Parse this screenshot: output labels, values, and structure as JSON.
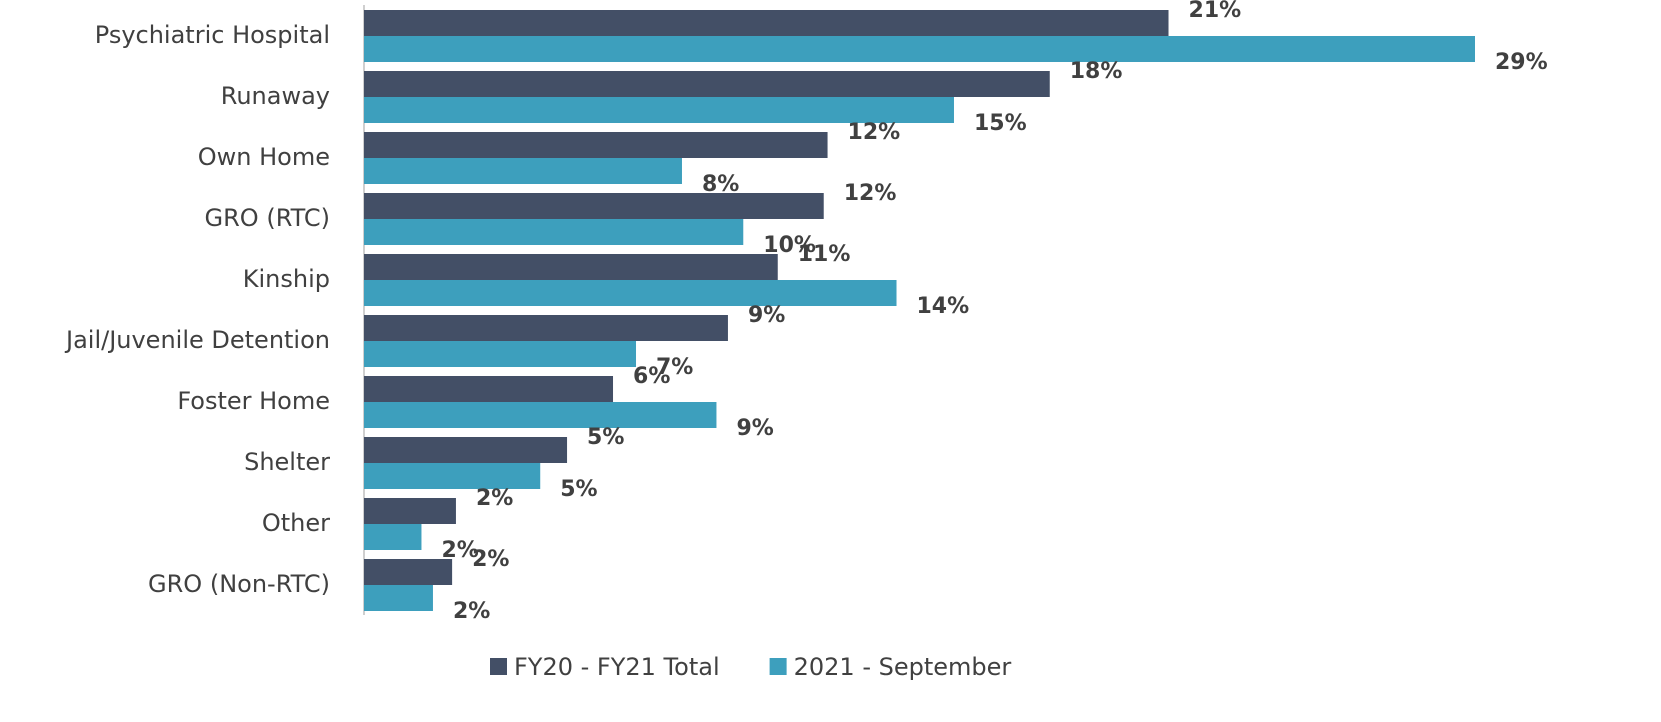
{
  "chart_data": {
    "type": "bar",
    "orientation": "horizontal",
    "categories": [
      "Psychiatric Hospital",
      "Runaway",
      "Own Home",
      "GRO (RTC)",
      "Kinship",
      "Jail/Juvenile Detention",
      "Foster Home",
      "Shelter",
      "Other",
      "GRO (Non-RTC)"
    ],
    "series": [
      {
        "name": "FY20 - FY21 Total",
        "color": "#434f66",
        "values": [
          21.0,
          17.9,
          12.1,
          12.0,
          10.8,
          9.5,
          6.5,
          5.3,
          2.4,
          2.3
        ],
        "value_labels": [
          "21%",
          "18%",
          "12%",
          "12%",
          "11%",
          "9%",
          "6%",
          "5%",
          "2%",
          "2%"
        ]
      },
      {
        "name": "2021 - September",
        "color": "#3d9fbd",
        "values": [
          29.0,
          15.4,
          8.3,
          9.9,
          13.9,
          7.1,
          9.2,
          4.6,
          1.5,
          1.8
        ],
        "value_labels": [
          "29%",
          "15%",
          "8%",
          "10%",
          "14%",
          "7%",
          "9%",
          "5%",
          "2%",
          "2%"
        ]
      }
    ],
    "xlim": [
      0,
      29
    ],
    "legend": "bottom"
  }
}
